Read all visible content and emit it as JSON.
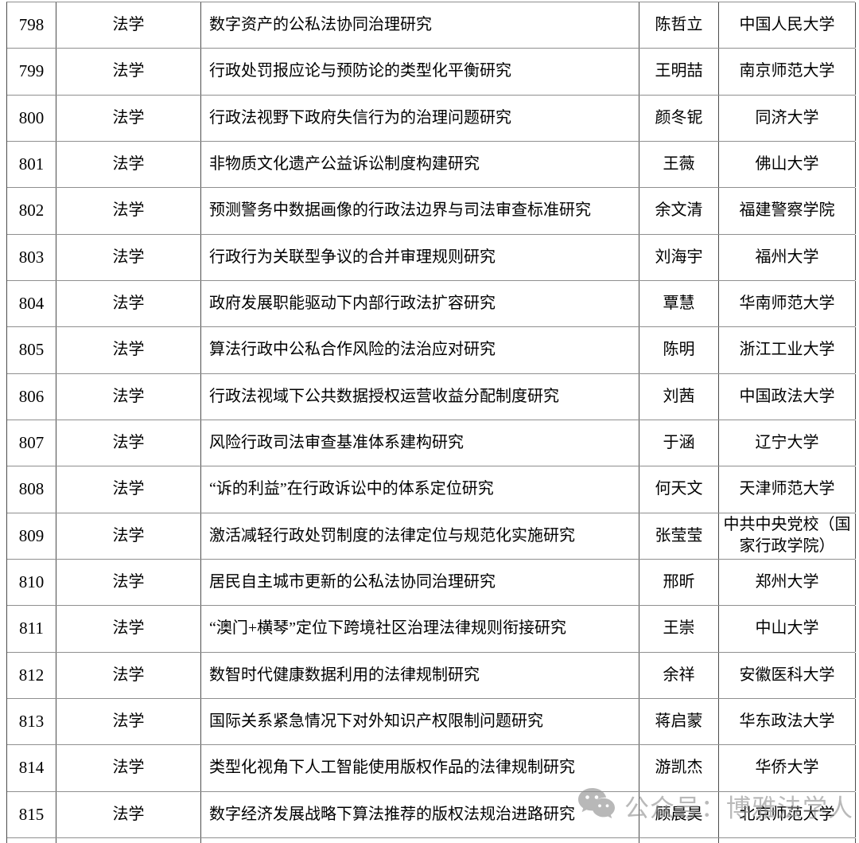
{
  "table": {
    "rows": [
      {
        "no": "798",
        "discipline": "法学",
        "title": "数字资产的公私法协同治理研究",
        "name": "陈哲立",
        "university": "中国人民大学"
      },
      {
        "no": "799",
        "discipline": "法学",
        "title": "行政处罚报应论与预防论的类型化平衡研究",
        "name": "王明喆",
        "university": "南京师范大学"
      },
      {
        "no": "800",
        "discipline": "法学",
        "title": "行政法视野下政府失信行为的治理问题研究",
        "name": "颜冬铌",
        "university": "同济大学"
      },
      {
        "no": "801",
        "discipline": "法学",
        "title": "非物质文化遗产公益诉讼制度构建研究",
        "name": "王薇",
        "university": "佛山大学"
      },
      {
        "no": "802",
        "discipline": "法学",
        "title": "预测警务中数据画像的行政法边界与司法审查标准研究",
        "name": "余文清",
        "university": "福建警察学院"
      },
      {
        "no": "803",
        "discipline": "法学",
        "title": "行政行为关联型争议的合并审理规则研究",
        "name": "刘海宇",
        "university": "福州大学"
      },
      {
        "no": "804",
        "discipline": "法学",
        "title": "政府发展职能驱动下内部行政法扩容研究",
        "name": "覃慧",
        "university": "华南师范大学"
      },
      {
        "no": "805",
        "discipline": "法学",
        "title": "算法行政中公私合作风险的法治应对研究",
        "name": "陈明",
        "university": "浙江工业大学"
      },
      {
        "no": "806",
        "discipline": "法学",
        "title": "行政法视域下公共数据授权运营收益分配制度研究",
        "name": "刘茜",
        "university": "中国政法大学"
      },
      {
        "no": "807",
        "discipline": "法学",
        "title": "风险行政司法审查基准体系建构研究",
        "name": "于涵",
        "university": "辽宁大学"
      },
      {
        "no": "808",
        "discipline": "法学",
        "title": "“诉的利益”在行政诉讼中的体系定位研究",
        "name": "何天文",
        "university": "天津师范大学"
      },
      {
        "no": "809",
        "discipline": "法学",
        "title": "激活减轻行政处罚制度的法律定位与规范化实施研究",
        "name": "张莹莹",
        "university": "中共中央党校（国家行政学院）"
      },
      {
        "no": "810",
        "discipline": "法学",
        "title": "居民自主城市更新的公私法协同治理研究",
        "name": "邢昕",
        "university": "郑州大学"
      },
      {
        "no": "811",
        "discipline": "法学",
        "title": "“澳门+横琴”定位下跨境社区治理法律规则衔接研究",
        "name": "王崇",
        "university": "中山大学"
      },
      {
        "no": "812",
        "discipline": "法学",
        "title": "数智时代健康数据利用的法律规制研究",
        "name": "余祥",
        "university": "安徽医科大学"
      },
      {
        "no": "813",
        "discipline": "法学",
        "title": "国际关系紧急情况下对外知识产权限制问题研究",
        "name": "蒋启蒙",
        "university": "华东政法大学"
      },
      {
        "no": "814",
        "discipline": "法学",
        "title": "类型化视角下人工智能使用版权作品的法律规制研究",
        "name": "游凯杰",
        "university": "华侨大学"
      },
      {
        "no": "815",
        "discipline": "法学",
        "title": "数字经济发展战略下算法推荐的版权法规治进路研究",
        "name": "顾晨昊",
        "university": "北京师范大学"
      }
    ]
  },
  "watermark": {
    "label": "公众号：博雅法学人",
    "icon": "wechat-icon",
    "color": "#8e8e8e"
  }
}
